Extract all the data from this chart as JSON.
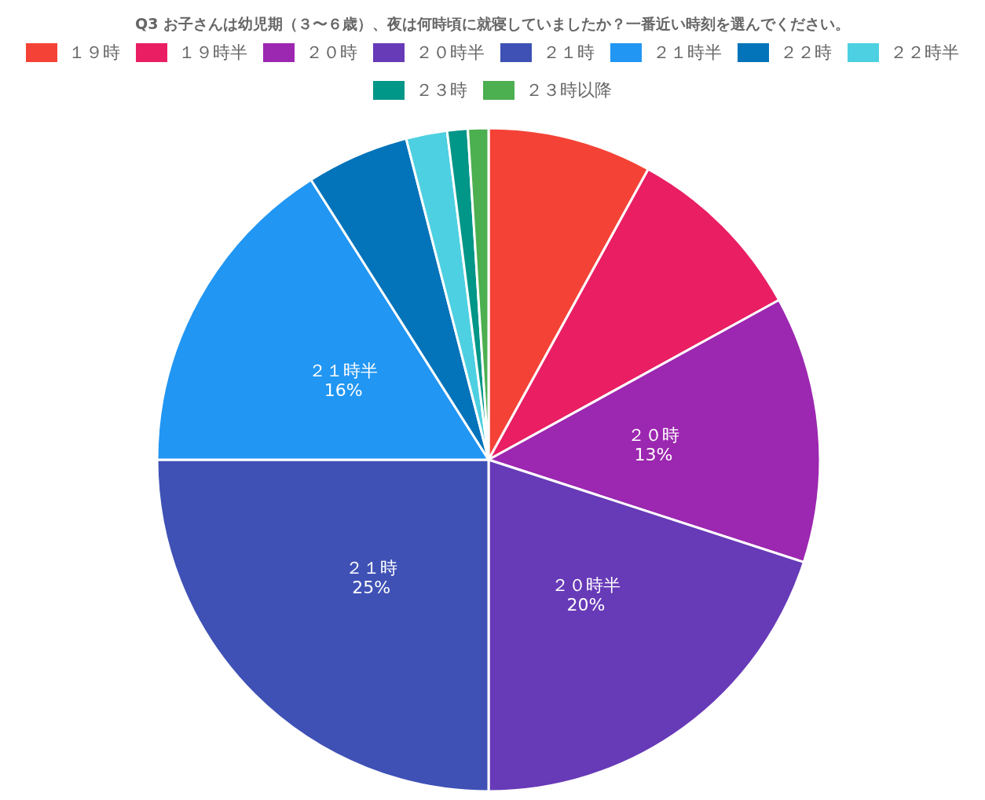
{
  "chart_data": {
    "type": "pie",
    "title": "Q3 お子さんは幼児期（３〜６歳）、夜は何時頃に就寝していましたか？一番近い時刻を選んでください。",
    "categories": [
      "１９時",
      "１９時半",
      "２０時",
      "２０時半",
      "２１時",
      "２１時半",
      "２２時",
      "２２時半",
      "２３時",
      "２３時以降"
    ],
    "values": [
      8,
      9,
      13,
      20,
      25,
      16,
      5,
      2,
      1,
      1
    ],
    "colors": [
      "#f44336",
      "#e91e63",
      "#9c27b0",
      "#673ab7",
      "#3f51b5",
      "#2196f3",
      "#0373ba",
      "#4dd0e1",
      "#009688",
      "#4caf50"
    ],
    "value_labels": [
      null,
      null,
      "13%",
      "20%",
      "25%",
      "16%",
      null,
      null,
      null,
      null
    ],
    "legend": "top"
  }
}
